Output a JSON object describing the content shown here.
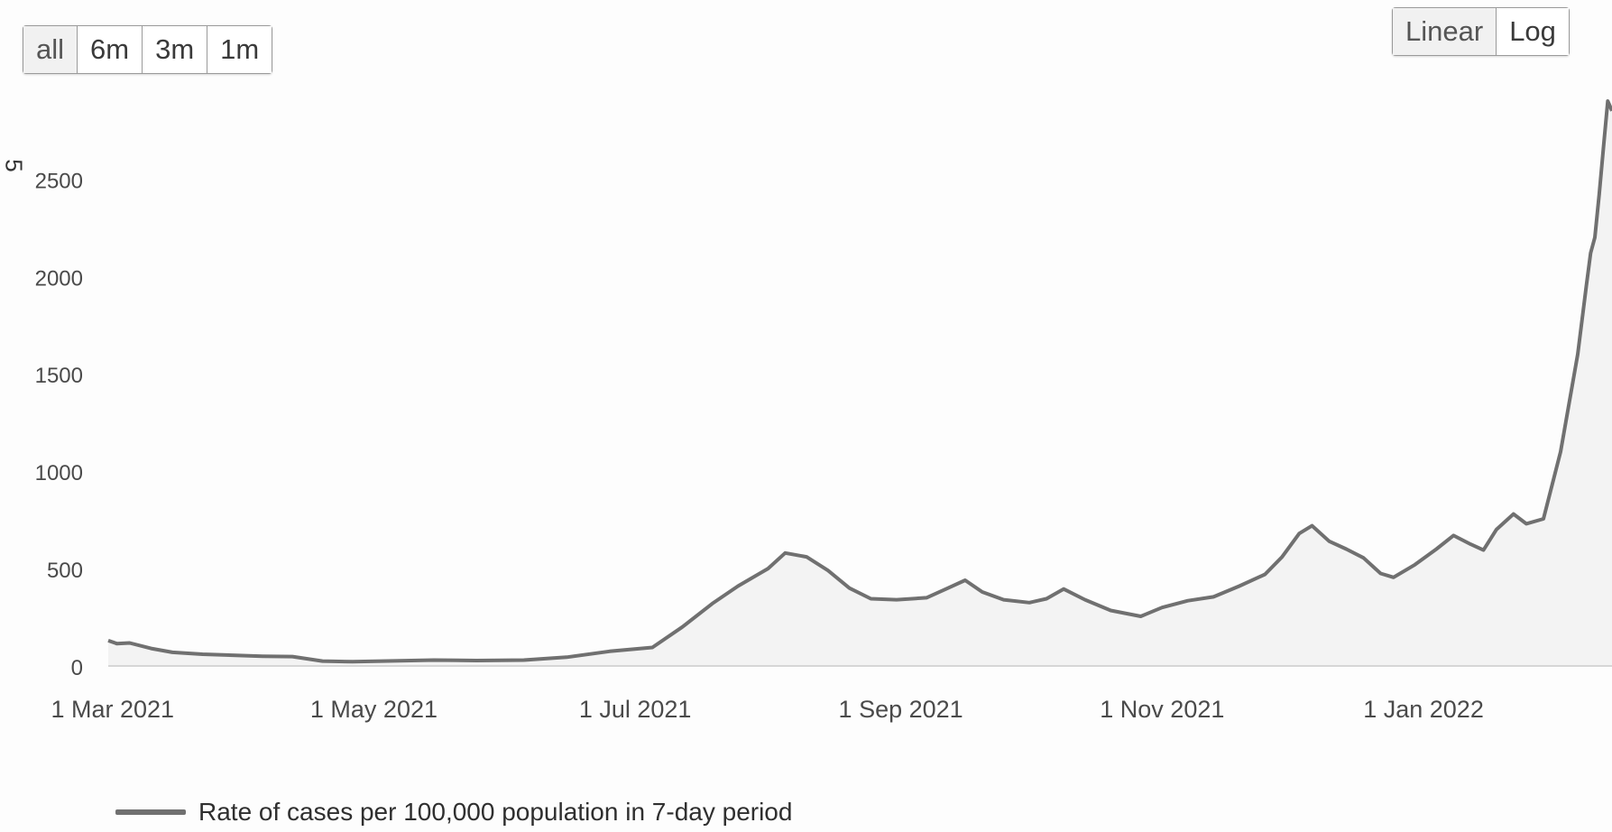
{
  "controls": {
    "range_buttons": [
      "all",
      "6m",
      "3m",
      "1m"
    ],
    "scale_buttons": [
      "Linear",
      "Log"
    ]
  },
  "stray_mark": "5",
  "colors": {
    "line": "#707070",
    "area": "#f3f3f3",
    "axis_text": "#4a4a4a"
  },
  "chart_data": {
    "type": "area",
    "title": "",
    "xlabel": "",
    "ylabel": "",
    "ylim": [
      0,
      2900
    ],
    "xlim": [
      "2021-02-28",
      "2022-02-14"
    ],
    "y_ticks": [
      0,
      500,
      1000,
      1500,
      2000,
      2500
    ],
    "y_tick_labels": [
      "0",
      "500",
      "1000",
      "1500",
      "2000",
      "2500"
    ],
    "x_ticks": [
      "2021-03-01",
      "2021-05-01",
      "2021-07-01",
      "2021-09-01",
      "2021-11-01",
      "2022-01-01"
    ],
    "x_tick_labels": [
      "1 Mar 2021",
      "1 May 2021",
      "1 Jul 2021",
      "1 Sep 2021",
      "1 Nov 2021",
      "1 Jan 2022"
    ],
    "grid": false,
    "legend_position": "bottom-left",
    "series": [
      {
        "name": "Rate of cases per 100,000 population in 7-day period",
        "points": [
          [
            "2021-02-28",
            130
          ],
          [
            "2021-03-02",
            115
          ],
          [
            "2021-03-05",
            118
          ],
          [
            "2021-03-10",
            90
          ],
          [
            "2021-03-15",
            70
          ],
          [
            "2021-03-22",
            60
          ],
          [
            "2021-03-29",
            55
          ],
          [
            "2021-04-05",
            50
          ],
          [
            "2021-04-12",
            48
          ],
          [
            "2021-04-19",
            25
          ],
          [
            "2021-04-26",
            22
          ],
          [
            "2021-05-03",
            25
          ],
          [
            "2021-05-15",
            30
          ],
          [
            "2021-05-25",
            28
          ],
          [
            "2021-06-05",
            30
          ],
          [
            "2021-06-15",
            45
          ],
          [
            "2021-06-25",
            75
          ],
          [
            "2021-07-05",
            95
          ],
          [
            "2021-07-12",
            200
          ],
          [
            "2021-07-19",
            320
          ],
          [
            "2021-07-25",
            410
          ],
          [
            "2021-08-01",
            500
          ],
          [
            "2021-08-05",
            580
          ],
          [
            "2021-08-10",
            560
          ],
          [
            "2021-08-15",
            490
          ],
          [
            "2021-08-20",
            400
          ],
          [
            "2021-08-25",
            345
          ],
          [
            "2021-08-31",
            340
          ],
          [
            "2021-09-07",
            350
          ],
          [
            "2021-09-12",
            400
          ],
          [
            "2021-09-16",
            440
          ],
          [
            "2021-09-20",
            380
          ],
          [
            "2021-09-25",
            340
          ],
          [
            "2021-10-01",
            325
          ],
          [
            "2021-10-05",
            345
          ],
          [
            "2021-10-09",
            395
          ],
          [
            "2021-10-14",
            340
          ],
          [
            "2021-10-20",
            285
          ],
          [
            "2021-10-27",
            255
          ],
          [
            "2021-11-01",
            300
          ],
          [
            "2021-11-07",
            335
          ],
          [
            "2021-11-13",
            355
          ],
          [
            "2021-11-19",
            410
          ],
          [
            "2021-11-25",
            470
          ],
          [
            "2021-11-29",
            560
          ],
          [
            "2021-12-03",
            680
          ],
          [
            "2021-12-06",
            720
          ],
          [
            "2021-12-10",
            640
          ],
          [
            "2021-12-14",
            600
          ],
          [
            "2021-12-18",
            555
          ],
          [
            "2021-12-22",
            475
          ],
          [
            "2021-12-25",
            455
          ],
          [
            "2021-12-30",
            520
          ],
          [
            "2022-01-04",
            600
          ],
          [
            "2022-01-08",
            670
          ],
          [
            "2022-01-12",
            625
          ],
          [
            "2022-01-15",
            595
          ],
          [
            "2022-01-18",
            700
          ],
          [
            "2022-01-22",
            780
          ],
          [
            "2022-01-25",
            730
          ],
          [
            "2022-01-29",
            755
          ],
          [
            "2022-02-02",
            1100
          ],
          [
            "2022-02-06",
            1600
          ],
          [
            "2022-02-08",
            1950
          ],
          [
            "2022-02-09",
            2120
          ],
          [
            "2022-02-10",
            2200
          ],
          [
            "2022-02-11",
            2420
          ],
          [
            "2022-02-12",
            2660
          ],
          [
            "2022-02-13",
            2900
          ],
          [
            "2022-02-14",
            2850
          ]
        ]
      }
    ]
  }
}
